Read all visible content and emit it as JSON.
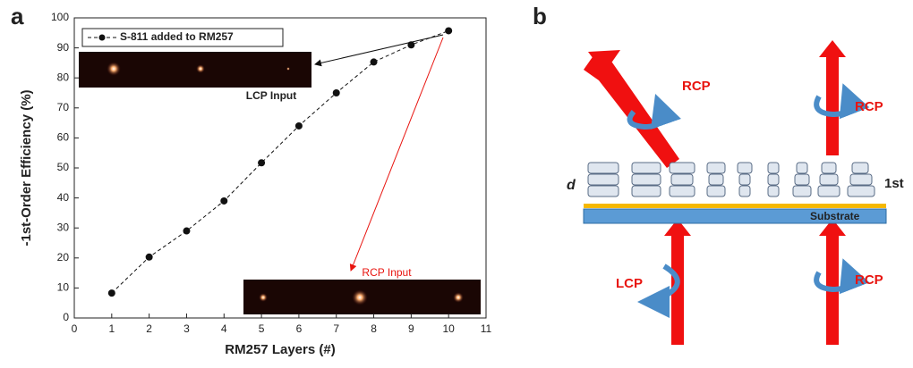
{
  "panel_labels": [
    "a",
    "b"
  ],
  "chart_data": {
    "type": "line",
    "xlabel": "RM257 Layers (#)",
    "ylabel": "-1st-Order Efficiency (%)",
    "x": [
      1,
      2,
      3,
      4,
      5,
      6,
      7,
      8,
      9,
      10
    ],
    "series": [
      {
        "name": "S-811 added to RM257",
        "color": "#111111",
        "values": [
          8.3,
          20.3,
          29,
          39,
          51.7,
          64,
          75,
          85.3,
          91,
          95.7
        ]
      }
    ],
    "xlim": [
      0,
      11
    ],
    "xticks": [
      0,
      1,
      2,
      3,
      4,
      5,
      6,
      7,
      8,
      9,
      10,
      11
    ],
    "ylim": [
      0,
      100
    ],
    "yticks": [
      0,
      10,
      20,
      30,
      40,
      50,
      60,
      70,
      80,
      90,
      100
    ],
    "legend": "upper left",
    "annotations": [
      "LCP Input",
      "RCP Input"
    ]
  },
  "diagram": {
    "labels": [
      "RCP",
      "RCP",
      "LCP",
      "RCP",
      "d",
      "1st",
      "Substrate"
    ]
  }
}
